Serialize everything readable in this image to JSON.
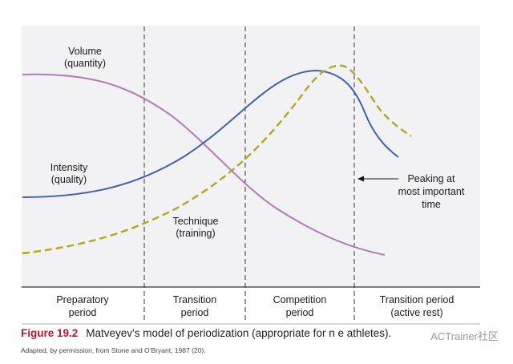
{
  "chart_data": {
    "type": "line",
    "title": "",
    "xlabel": "",
    "ylabel": "",
    "grid": false,
    "periods": [
      {
        "line1": "Preparatory",
        "line2": "period"
      },
      {
        "line1": "Transition",
        "line2": "period"
      },
      {
        "line1": "Competition",
        "line2": "period"
      },
      {
        "line1": "Transition period",
        "line2": "(active rest)"
      }
    ],
    "series": [
      {
        "label_line1": "Volume",
        "label_line2": "(quantity)",
        "color": "#b07ab8",
        "style": "solid"
      },
      {
        "label_line1": "Intensity",
        "label_line2": "(quality)",
        "color": "#3f63b0",
        "style": "solid"
      },
      {
        "label_line1": "Technique",
        "label_line2": "(training)",
        "color": "#b3a620",
        "style": "dashed"
      }
    ],
    "annotations": [
      {
        "line1": "Peaking at",
        "line2": "most important",
        "line3": "time"
      }
    ]
  },
  "caption": {
    "figure_number": "Figure 19.2",
    "text": "Matveyev’s model of periodization (appropriate for n  e athletes)."
  },
  "credit": "Adapted, by permission, from Stone and O’Bryant, 1987 (20).",
  "watermark": "ACTrainer社区",
  "colors": {
    "plot_background": "#f2f2f4",
    "divider": "#333333",
    "caption_accent": "#c8102e"
  }
}
